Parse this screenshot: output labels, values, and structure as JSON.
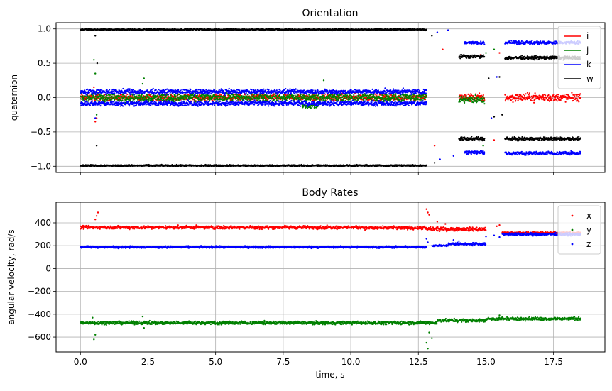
{
  "chart_data": [
    {
      "type": "scatter",
      "title": "Orientation",
      "xlabel": "",
      "ylabel": "quaternion",
      "xlim": [
        -0.9,
        19.4
      ],
      "ylim": [
        -1.09,
        1.09
      ],
      "x_ticks": [
        0.0,
        2.5,
        5.0,
        7.5,
        10.0,
        12.5,
        15.0,
        17.5
      ],
      "y_ticks": [
        -1.0,
        -0.5,
        0.0,
        0.5,
        1.0
      ],
      "y_tick_labels": [
        "−1.0",
        "−0.5",
        "0.0",
        "0.5",
        "1.0"
      ],
      "grid": true,
      "legend_position": "upper right",
      "legend_style": "line",
      "series": [
        {
          "name": "i",
          "color": "#ff0000",
          "segments": [
            {
              "t0": 0.0,
              "t1": 12.8,
              "mean": 0.0,
              "spread": 0.04
            },
            {
              "t0": 14.0,
              "t1": 14.95,
              "mean": 0.0,
              "spread": 0.05
            },
            {
              "t0": 15.7,
              "t1": 18.5,
              "mean": 0.0,
              "spread": 0.05
            }
          ],
          "outliers": [
            [
              0.55,
              -0.35
            ],
            [
              0.6,
              -0.3
            ],
            [
              0.5,
              0.15
            ],
            [
              14.8,
              0.62
            ],
            [
              15.5,
              0.65
            ],
            [
              15.3,
              -0.62
            ],
            [
              13.1,
              -0.7
            ],
            [
              13.4,
              0.7
            ]
          ]
        },
        {
          "name": "j",
          "color": "#008000",
          "segments": [
            {
              "t0": 0.0,
              "t1": 12.8,
              "mean": 0.0,
              "spread": 0.05
            },
            {
              "t0": 8.2,
              "t1": 8.8,
              "mean": -0.12,
              "spread": 0.03
            },
            {
              "t0": 14.0,
              "t1": 14.95,
              "mean": -0.03,
              "spread": 0.05
            }
          ],
          "outliers": [
            [
              0.5,
              0.55
            ],
            [
              0.55,
              0.35
            ],
            [
              0.6,
              -0.25
            ],
            [
              0.45,
              -0.1
            ],
            [
              2.3,
              0.2
            ],
            [
              2.35,
              0.28
            ],
            [
              9.0,
              0.25
            ],
            [
              15.0,
              0.65
            ],
            [
              15.3,
              0.7
            ],
            [
              14.9,
              -0.7
            ]
          ]
        },
        {
          "name": "k",
          "color": "#0000ff",
          "segments": [
            {
              "t0": 0.0,
              "t1": 12.8,
              "mean": 0.085,
              "spread": 0.03
            },
            {
              "t0": 0.0,
              "t1": 12.8,
              "mean": -0.085,
              "spread": 0.03
            },
            {
              "t0": 14.2,
              "t1": 14.95,
              "mean": 0.8,
              "spread": 0.02
            },
            {
              "t0": 14.2,
              "t1": 14.95,
              "mean": -0.8,
              "spread": 0.02
            },
            {
              "t0": 15.7,
              "t1": 18.5,
              "mean": 0.8,
              "spread": 0.02
            },
            {
              "t0": 15.7,
              "t1": 18.5,
              "mean": -0.81,
              "spread": 0.02
            }
          ],
          "outliers": [
            [
              0.55,
              -0.3
            ],
            [
              13.2,
              0.95
            ],
            [
              13.6,
              0.98
            ],
            [
              13.3,
              -0.9
            ],
            [
              13.8,
              -0.85
            ],
            [
              15.2,
              -0.3
            ],
            [
              15.4,
              0.3
            ]
          ]
        },
        {
          "name": "w",
          "color": "#000000",
          "segments": [
            {
              "t0": 0.0,
              "t1": 12.8,
              "mean": 0.99,
              "spread": 0.01
            },
            {
              "t0": 0.0,
              "t1": 12.8,
              "mean": -0.99,
              "spread": 0.01
            },
            {
              "t0": 14.0,
              "t1": 14.95,
              "mean": 0.6,
              "spread": 0.02
            },
            {
              "t0": 14.0,
              "t1": 14.95,
              "mean": -0.6,
              "spread": 0.02
            },
            {
              "t0": 15.7,
              "t1": 18.5,
              "mean": 0.58,
              "spread": 0.02
            },
            {
              "t0": 15.7,
              "t1": 18.5,
              "mean": -0.6,
              "spread": 0.02
            }
          ],
          "outliers": [
            [
              0.55,
              0.9
            ],
            [
              0.6,
              -0.7
            ],
            [
              0.62,
              0.5
            ],
            [
              13.0,
              0.9
            ],
            [
              13.1,
              -0.95
            ],
            [
              15.1,
              0.28
            ],
            [
              15.3,
              -0.28
            ],
            [
              15.5,
              0.3
            ],
            [
              15.6,
              -0.25
            ]
          ]
        }
      ]
    },
    {
      "type": "scatter",
      "title": "Body Rates",
      "xlabel": "time, s",
      "ylabel": "angular velocity, rad/s",
      "xlim": [
        -0.9,
        19.4
      ],
      "ylim": [
        -730,
        580
      ],
      "x_ticks": [
        0.0,
        2.5,
        5.0,
        7.5,
        10.0,
        12.5,
        15.0,
        17.5
      ],
      "x_tick_labels": [
        "0.0",
        "2.5",
        "5.0",
        "7.5",
        "10.0",
        "12.5",
        "15.0",
        "17.5"
      ],
      "y_ticks": [
        -600,
        -400,
        -200,
        0,
        200,
        400
      ],
      "y_tick_labels": [
        "−600",
        "−400",
        "−200",
        "0",
        "200",
        "400"
      ],
      "grid": true,
      "legend_position": "upper right",
      "legend_style": "marker",
      "series": [
        {
          "name": "x",
          "color": "#ff0000",
          "segments": [
            {
              "t0": 0.0,
              "t1": 10.5,
              "mean": 360,
              "spread": 12
            },
            {
              "t0": 10.5,
              "t1": 12.8,
              "mean": 355,
              "spread": 12
            },
            {
              "t0": 12.8,
              "t1": 15.0,
              "mean": 345,
              "spread": 14
            },
            {
              "t0": 15.6,
              "t1": 18.5,
              "mean": 312,
              "spread": 8
            }
          ],
          "outliers": [
            [
              0.6,
              460
            ],
            [
              0.65,
              490
            ],
            [
              0.55,
              430
            ],
            [
              12.8,
              520
            ],
            [
              12.85,
              490
            ],
            [
              12.9,
              470
            ],
            [
              13.2,
              410
            ],
            [
              13.5,
              390
            ],
            [
              15.5,
              380
            ],
            [
              15.4,
              370
            ]
          ]
        },
        {
          "name": "y",
          "color": "#008000",
          "segments": [
            {
              "t0": 0.0,
              "t1": 13.2,
              "mean": -475,
              "spread": 12
            },
            {
              "t0": 13.2,
              "t1": 15.0,
              "mean": -455,
              "spread": 12
            },
            {
              "t0": 15.0,
              "t1": 18.5,
              "mean": -440,
              "spread": 12
            }
          ],
          "outliers": [
            [
              0.5,
              -620
            ],
            [
              0.55,
              -580
            ],
            [
              0.45,
              -430
            ],
            [
              2.3,
              -420
            ],
            [
              2.35,
              -520
            ],
            [
              12.8,
              -650
            ],
            [
              12.85,
              -700
            ],
            [
              12.9,
              -560
            ],
            [
              13.0,
              -610
            ],
            [
              15.5,
              -410
            ]
          ]
        },
        {
          "name": "z",
          "color": "#0000ff",
          "segments": [
            {
              "t0": 0.0,
              "t1": 12.8,
              "mean": 188,
              "spread": 8
            },
            {
              "t0": 13.0,
              "t1": 13.6,
              "mean": 200,
              "spread": 6
            },
            {
              "t0": 13.6,
              "t1": 15.0,
              "mean": 215,
              "spread": 10
            },
            {
              "t0": 15.6,
              "t1": 18.5,
              "mean": 300,
              "spread": 10
            }
          ],
          "outliers": [
            [
              12.8,
              260
            ],
            [
              12.85,
              230
            ],
            [
              13.8,
              250
            ],
            [
              14.0,
              240
            ],
            [
              15.0,
              280
            ],
            [
              15.3,
              290
            ],
            [
              15.5,
              275
            ]
          ]
        }
      ]
    }
  ]
}
